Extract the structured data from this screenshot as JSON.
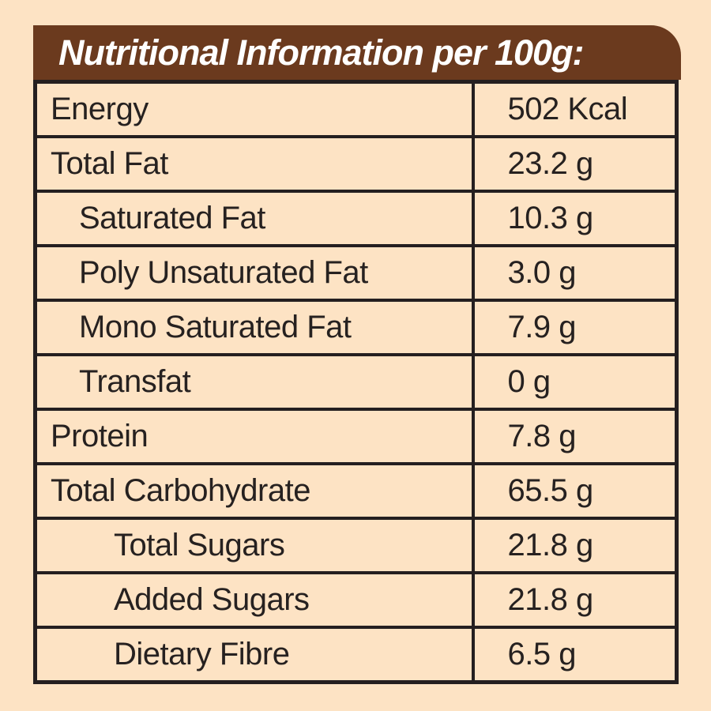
{
  "header": {
    "title": "Nutritional Information per 100g:"
  },
  "table": {
    "rows": [
      {
        "label": "Energy",
        "value": "502 Kcal",
        "indent": 0
      },
      {
        "label": "Total Fat",
        "value": "23.2 g",
        "indent": 0
      },
      {
        "label": "Saturated Fat",
        "value": "10.3 g",
        "indent": 1
      },
      {
        "label": "Poly Unsaturated Fat",
        "value": "3.0 g",
        "indent": 1
      },
      {
        "label": "Mono Saturated Fat",
        "value": "7.9 g",
        "indent": 1
      },
      {
        "label": "Transfat",
        "value": "0 g",
        "indent": 1
      },
      {
        "label": "Protein",
        "value": "7.8 g",
        "indent": 0
      },
      {
        "label": "Total Carbohydrate",
        "value": "65.5 g",
        "indent": 0
      },
      {
        "label": "Total Sugars",
        "value": "21.8 g",
        "indent": 2
      },
      {
        "label": "Added Sugars",
        "value": "21.8 g",
        "indent": 2
      },
      {
        "label": "Dietary Fibre",
        "value": "6.5 g",
        "indent": 2
      }
    ]
  },
  "colors": {
    "background": "#FDE3C4",
    "header_background": "#6B3A1E",
    "header_text": "#FFFFFF",
    "border": "#241F20",
    "text": "#262120"
  }
}
